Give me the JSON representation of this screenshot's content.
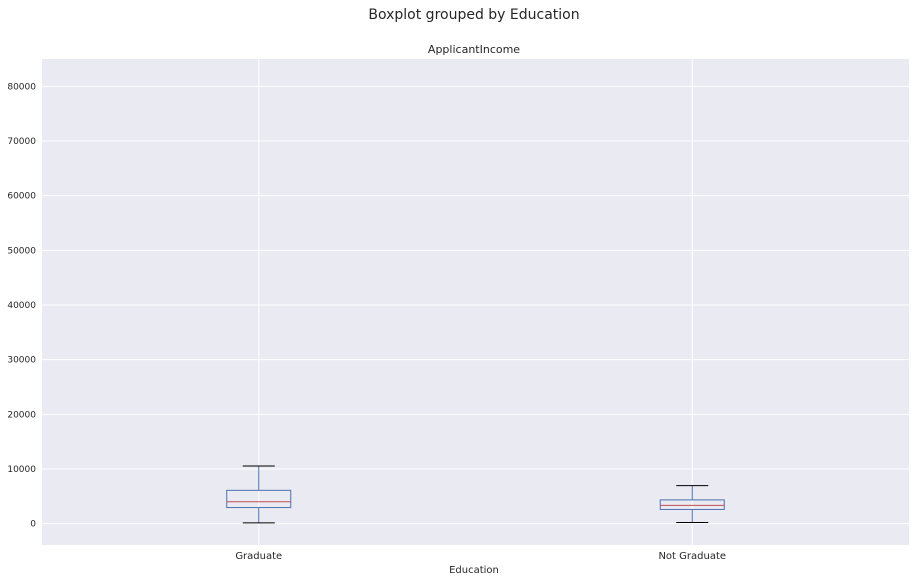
{
  "chart_data": {
    "type": "boxplot",
    "suptitle": "Boxplot grouped by Education",
    "title": "ApplicantIncome",
    "xlabel": "Education",
    "ylabel": "",
    "ylim": [
      -3900,
      85000
    ],
    "yticks": [
      0,
      10000,
      20000,
      30000,
      40000,
      50000,
      60000,
      70000,
      80000
    ],
    "grid": true,
    "categories": [
      "Graduate",
      "Not Graduate"
    ],
    "boxes": [
      {
        "category": "Graduate",
        "whisker_low": 150,
        "q1": 2950,
        "median": 4000,
        "q3": 6100,
        "whisker_high": 10550
      },
      {
        "category": "Not Graduate",
        "whisker_low": 210,
        "q1": 2600,
        "median": 3350,
        "q3": 4350,
        "whisker_high": 6950
      }
    ],
    "colors": {
      "background": "#eaeaf2",
      "grid": "#ffffff",
      "box": "#4c72b0",
      "median": "#c44e52",
      "cap": "#000000"
    }
  }
}
